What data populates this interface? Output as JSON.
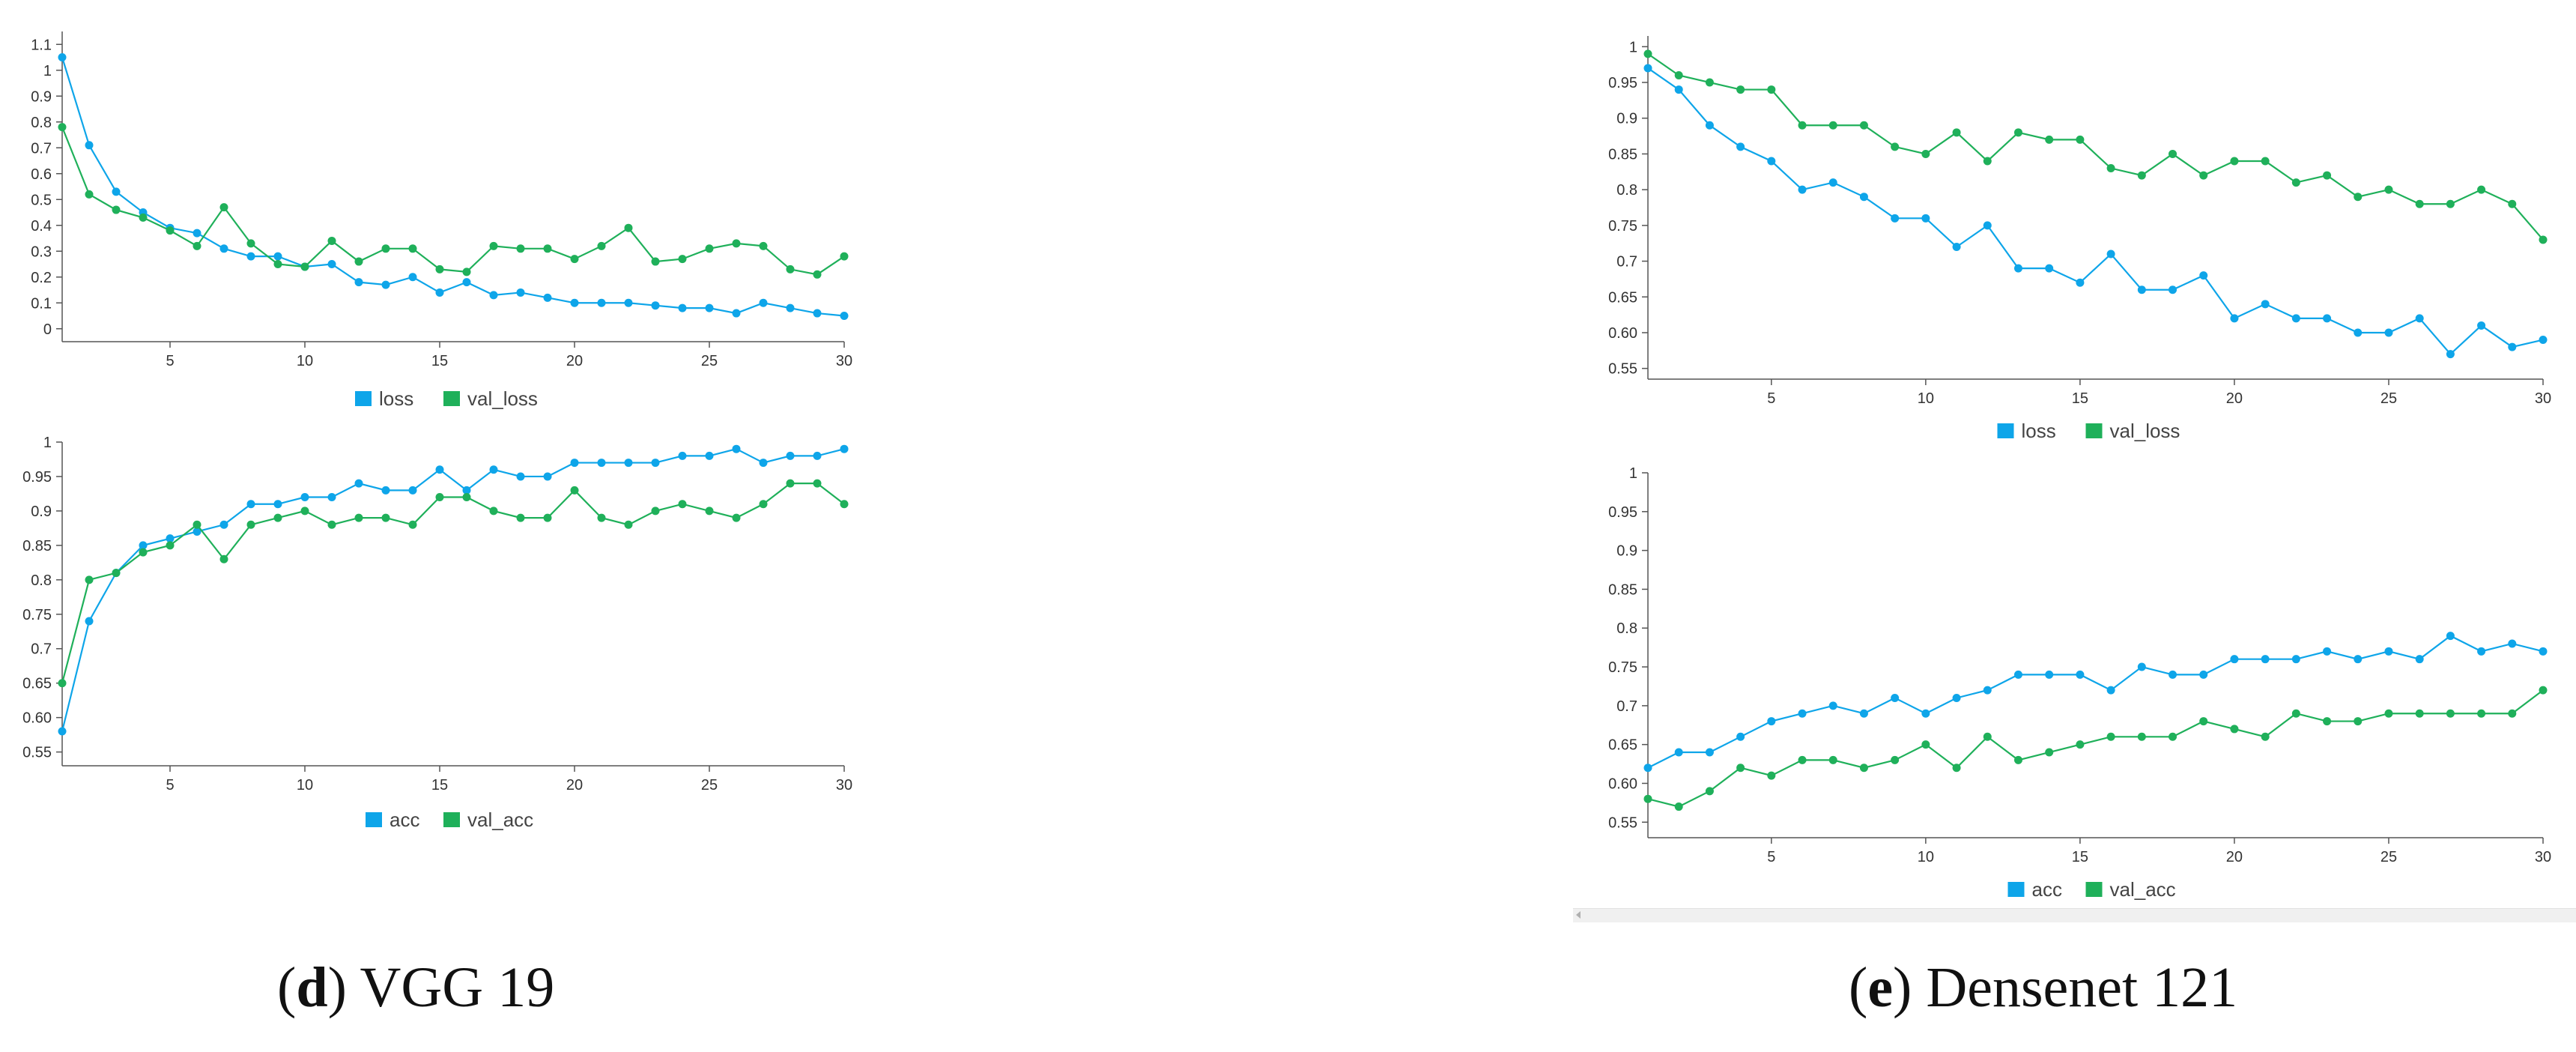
{
  "chart_data": [
    {
      "type": "line",
      "panel": "VGG 19 loss",
      "x": [
        1,
        2,
        3,
        4,
        5,
        6,
        7,
        8,
        9,
        10,
        11,
        12,
        13,
        14,
        15,
        16,
        17,
        18,
        19,
        20,
        21,
        22,
        23,
        24,
        25,
        26,
        27,
        28,
        29,
        30
      ],
      "series": [
        {
          "name": "loss",
          "color": "#0ea5e9",
          "values": [
            1.05,
            0.71,
            0.53,
            0.45,
            0.39,
            0.37,
            0.31,
            0.28,
            0.28,
            0.24,
            0.25,
            0.18,
            0.17,
            0.2,
            0.14,
            0.18,
            0.13,
            0.14,
            0.12,
            0.1,
            0.1,
            0.1,
            0.09,
            0.08,
            0.08,
            0.06,
            0.1,
            0.08,
            0.06,
            0.05
          ]
        },
        {
          "name": "val_loss",
          "color": "#1fb05a",
          "values": [
            0.78,
            0.52,
            0.46,
            0.43,
            0.38,
            0.32,
            0.47,
            0.33,
            0.25,
            0.24,
            0.34,
            0.26,
            0.31,
            0.31,
            0.23,
            0.22,
            0.32,
            0.31,
            0.31,
            0.27,
            0.32,
            0.39,
            0.26,
            0.27,
            0.31,
            0.33,
            0.32,
            0.23,
            0.21,
            0.28
          ]
        }
      ],
      "ylim": [
        -0.05,
        1.15
      ],
      "xticks": [
        5,
        10,
        15,
        20,
        25,
        30
      ],
      "yticks": [
        0,
        0.1,
        0.2,
        0.3,
        0.4,
        0.5,
        0.6,
        0.7,
        0.8,
        0.9,
        1,
        1.1
      ],
      "ytick_labels": [
        "0",
        "0.1",
        "0.2",
        "0.3",
        "0.4",
        "0.5",
        "0.6",
        "0.7",
        "0.8",
        "0.9",
        "1",
        "1.1"
      ],
      "legend": [
        "loss",
        "val_loss"
      ],
      "grid": false
    },
    {
      "type": "line",
      "panel": "VGG 19 accuracy",
      "x": [
        1,
        2,
        3,
        4,
        5,
        6,
        7,
        8,
        9,
        10,
        11,
        12,
        13,
        14,
        15,
        16,
        17,
        18,
        19,
        20,
        21,
        22,
        23,
        24,
        25,
        26,
        27,
        28,
        29,
        30
      ],
      "series": [
        {
          "name": "acc",
          "color": "#0ea5e9",
          "values": [
            0.58,
            0.74,
            0.81,
            0.85,
            0.86,
            0.87,
            0.88,
            0.91,
            0.91,
            0.92,
            0.92,
            0.94,
            0.93,
            0.93,
            0.96,
            0.93,
            0.96,
            0.95,
            0.95,
            0.97,
            0.97,
            0.97,
            0.97,
            0.98,
            0.98,
            0.99,
            0.97,
            0.98,
            0.98,
            0.99
          ]
        },
        {
          "name": "val_acc",
          "color": "#1fb05a",
          "values": [
            0.65,
            0.8,
            0.81,
            0.84,
            0.85,
            0.88,
            0.83,
            0.88,
            0.89,
            0.9,
            0.88,
            0.89,
            0.89,
            0.88,
            0.92,
            0.92,
            0.9,
            0.89,
            0.89,
            0.93,
            0.89,
            0.88,
            0.9,
            0.91,
            0.9,
            0.89,
            0.91,
            0.94,
            0.94,
            0.91
          ]
        }
      ],
      "ylim": [
        0.53,
        1.0
      ],
      "xticks": [
        5,
        10,
        15,
        20,
        25,
        30
      ],
      "yticks": [
        0.55,
        0.6,
        0.65,
        0.7,
        0.75,
        0.8,
        0.85,
        0.9,
        0.95,
        1
      ],
      "ytick_labels": [
        "0.55",
        "0.60",
        "0.65",
        "0.7",
        "0.75",
        "0.8",
        "0.85",
        "0.9",
        "0.95",
        "1"
      ],
      "legend": [
        "acc",
        "val_acc"
      ],
      "grid": false
    },
    {
      "type": "line",
      "panel": "Densenet 121 loss",
      "x": [
        1,
        2,
        3,
        4,
        5,
        6,
        7,
        8,
        9,
        10,
        11,
        12,
        13,
        14,
        15,
        16,
        17,
        18,
        19,
        20,
        21,
        22,
        23,
        24,
        25,
        26,
        27,
        28,
        29,
        30
      ],
      "series": [
        {
          "name": "loss",
          "color": "#0ea5e9",
          "values": [
            0.97,
            0.94,
            0.89,
            0.86,
            0.84,
            0.8,
            0.81,
            0.79,
            0.76,
            0.76,
            0.72,
            0.75,
            0.69,
            0.69,
            0.67,
            0.71,
            0.66,
            0.66,
            0.68,
            0.62,
            0.64,
            0.62,
            0.62,
            0.6,
            0.6,
            0.62,
            0.57,
            0.61,
            0.58,
            0.59
          ]
        },
        {
          "name": "val_loss",
          "color": "#1fb05a",
          "values": [
            0.99,
            0.96,
            0.95,
            0.94,
            0.94,
            0.89,
            0.89,
            0.89,
            0.86,
            0.85,
            0.88,
            0.84,
            0.88,
            0.87,
            0.87,
            0.83,
            0.82,
            0.85,
            0.82,
            0.84,
            0.84,
            0.81,
            0.82,
            0.79,
            0.8,
            0.78,
            0.78,
            0.8,
            0.78,
            0.73
          ]
        }
      ],
      "ylim": [
        0.535,
        1.015
      ],
      "xticks": [
        5,
        10,
        15,
        20,
        25,
        30
      ],
      "yticks": [
        0.55,
        0.6,
        0.65,
        0.7,
        0.75,
        0.8,
        0.85,
        0.9,
        0.95,
        1
      ],
      "ytick_labels": [
        "0.55",
        "0.60",
        "0.65",
        "0.7",
        "0.75",
        "0.8",
        "0.85",
        "0.9",
        "0.95",
        "1"
      ],
      "legend": [
        "loss",
        "val_loss"
      ],
      "grid": false
    },
    {
      "type": "line",
      "panel": "Densenet 121 accuracy",
      "x": [
        1,
        2,
        3,
        4,
        5,
        6,
        7,
        8,
        9,
        10,
        11,
        12,
        13,
        14,
        15,
        16,
        17,
        18,
        19,
        20,
        21,
        22,
        23,
        24,
        25,
        26,
        27,
        28,
        29,
        30
      ],
      "series": [
        {
          "name": "acc",
          "color": "#0ea5e9",
          "values": [
            0.62,
            0.64,
            0.64,
            0.66,
            0.68,
            0.69,
            0.7,
            0.69,
            0.71,
            0.69,
            0.71,
            0.72,
            0.74,
            0.74,
            0.74,
            0.72,
            0.75,
            0.74,
            0.74,
            0.76,
            0.76,
            0.76,
            0.77,
            0.76,
            0.77,
            0.76,
            0.79,
            0.77,
            0.78,
            0.77
          ]
        },
        {
          "name": "val_acc",
          "color": "#1fb05a",
          "values": [
            0.58,
            0.57,
            0.59,
            0.62,
            0.61,
            0.63,
            0.63,
            0.62,
            0.63,
            0.65,
            0.62,
            0.66,
            0.63,
            0.64,
            0.65,
            0.66,
            0.66,
            0.66,
            0.68,
            0.67,
            0.66,
            0.69,
            0.68,
            0.68,
            0.69,
            0.69,
            0.69,
            0.69,
            0.69,
            0.72
          ]
        }
      ],
      "ylim": [
        0.53,
        1.0
      ],
      "xticks": [
        5,
        10,
        15,
        20,
        25,
        30
      ],
      "yticks": [
        0.55,
        0.6,
        0.65,
        0.7,
        0.75,
        0.8,
        0.85,
        0.9,
        0.95,
        1
      ],
      "ytick_labels": [
        "0.55",
        "0.60",
        "0.65",
        "0.7",
        "0.75",
        "0.8",
        "0.85",
        "0.9",
        "0.95",
        "1"
      ],
      "legend": [
        "acc",
        "val_acc"
      ],
      "grid": false
    }
  ],
  "captions": {
    "left": {
      "letter": "d",
      "text": " VGG 19"
    },
    "right": {
      "letter": "e",
      "text": " Densenet 121"
    }
  }
}
